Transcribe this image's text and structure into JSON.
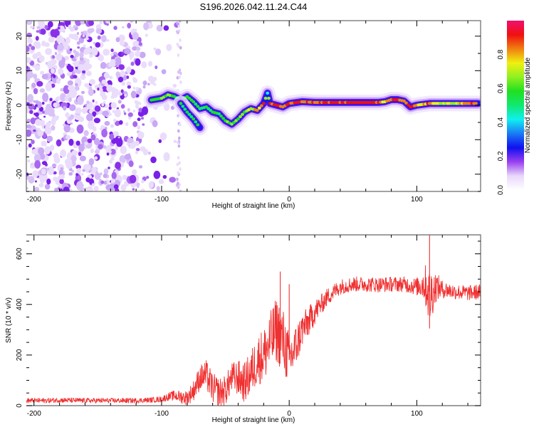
{
  "chart_data": [
    {
      "type": "heatmap",
      "title": "S196.2026.042.11.24.C44",
      "xlabel": "Height of straight line (km)",
      "ylabel": "Frequency (Hz)",
      "xlim": [
        -206,
        150
      ],
      "ylim": [
        -25,
        24.5
      ],
      "xticks": [
        -200,
        -100,
        0,
        100
      ],
      "xtick_labels": [
        "-200",
        "-100",
        "0",
        "100"
      ],
      "yticks": [
        -20,
        -10,
        0,
        10,
        20
      ],
      "ytick_labels": [
        "-20",
        "-10",
        "0",
        "10",
        "20"
      ],
      "grid": false,
      "colorbar": {
        "label": "Normalized spectral amplitude",
        "range": [
          0,
          1
        ],
        "ticks": [
          0.0,
          0.2,
          0.4,
          0.6,
          0.8
        ],
        "tick_labels": [
          "0.0",
          "0.2",
          "0.4",
          "0.6",
          "0.8"
        ],
        "colors": [
          "#ffffff",
          "#e8d8fb",
          "#9a3ff0",
          "#1010f0",
          "#1a7af5",
          "#10f0f0",
          "#10e870",
          "#20e020",
          "#90f020",
          "#f0f010",
          "#f08010",
          "#f01010",
          "#f01070"
        ]
      },
      "noise_region": {
        "x_range": [
          -206,
          -85
        ],
        "level": 0.12,
        "note": "scattered low-amplitude noise"
      },
      "ridge": {
        "x": [
          -108,
          -100,
          -95,
          -90,
          -85,
          -80,
          -75,
          -70,
          -65,
          -60,
          -55,
          -50,
          -45,
          -40,
          -35,
          -30,
          -25,
          -20,
          -17,
          -15,
          -10,
          -5,
          0,
          10,
          20,
          30,
          40,
          50,
          60,
          70,
          75,
          80,
          85,
          90,
          95,
          100,
          110,
          120,
          130,
          140,
          148
        ],
        "freq": [
          1.5,
          2.0,
          3.0,
          2.5,
          1.5,
          2.5,
          1.0,
          -1.0,
          -0.5,
          -2.0,
          -2.5,
          -4.5,
          -5.5,
          -4.0,
          -2.0,
          -1.0,
          -1.5,
          0.5,
          3.5,
          0.5,
          0.0,
          -0.5,
          0.5,
          1.0,
          0.8,
          0.8,
          0.8,
          0.8,
          0.8,
          0.8,
          1.0,
          1.6,
          1.6,
          1.2,
          -0.5,
          0.0,
          0.5,
          0.5,
          0.5,
          0.5,
          0.5
        ],
        "amplitude": [
          0.45,
          0.5,
          0.55,
          0.45,
          0.4,
          0.5,
          0.4,
          0.35,
          0.4,
          0.45,
          0.4,
          0.5,
          0.5,
          0.55,
          0.6,
          0.65,
          0.75,
          0.8,
          0.35,
          0.85,
          0.9,
          0.85,
          0.95,
          0.9,
          0.85,
          0.95,
          0.95,
          0.95,
          0.95,
          0.95,
          0.7,
          0.95,
          0.95,
          0.8,
          0.95,
          0.7,
          0.85,
          0.65,
          0.6,
          0.9,
          0.9
        ]
      },
      "branch": {
        "x": [
          -85,
          -80,
          -75,
          -70
        ],
        "freq": [
          0.5,
          -2.0,
          -4.0,
          -6.5
        ],
        "amplitude": [
          0.4,
          0.45,
          0.4,
          0.35
        ]
      }
    },
    {
      "type": "line",
      "xlabel": "Height of straight line (km)",
      "ylabel": "SNR (10 * v/v)",
      "xlim": [
        -206,
        150
      ],
      "ylim": [
        0,
        675
      ],
      "xticks": [
        -200,
        -100,
        0,
        100
      ],
      "xtick_labels": [
        "-200",
        "-100",
        "0",
        "100"
      ],
      "yticks": [
        0,
        200,
        400,
        600
      ],
      "ytick_labels": [
        "0",
        "200",
        "400",
        "600"
      ],
      "grid": false,
      "series": [
        {
          "name": "SNR",
          "color": "#f03030",
          "x": [
            -206,
            -190,
            -180,
            -160,
            -140,
            -120,
            -110,
            -100,
            -95,
            -90,
            -85,
            -80,
            -75,
            -70,
            -65,
            -60,
            -55,
            -50,
            -45,
            -40,
            -35,
            -30,
            -25,
            -20,
            -15,
            -10,
            -5,
            0,
            5,
            10,
            15,
            20,
            25,
            30,
            40,
            50,
            60,
            70,
            80,
            90,
            100,
            105,
            108,
            110,
            112,
            115,
            120,
            130,
            140,
            150
          ],
          "y": [
            20,
            20,
            22,
            20,
            20,
            20,
            22,
            25,
            35,
            40,
            35,
            30,
            60,
            110,
            120,
            70,
            50,
            60,
            110,
            110,
            90,
            130,
            180,
            200,
            250,
            300,
            260,
            180,
            230,
            300,
            330,
            370,
            400,
            430,
            470,
            480,
            480,
            478,
            480,
            480,
            470,
            480,
            470,
            420,
            450,
            470,
            460,
            450,
            445,
            450
          ],
          "noise_amplitude": [
            10,
            10,
            10,
            10,
            10,
            10,
            10,
            12,
            15,
            20,
            25,
            30,
            40,
            50,
            60,
            60,
            60,
            60,
            60,
            70,
            80,
            90,
            100,
            110,
            120,
            130,
            130,
            110,
            90,
            70,
            60,
            50,
            40,
            35,
            30,
            30,
            30,
            30,
            30,
            30,
            35,
            60,
            100,
            120,
            100,
            60,
            35,
            30,
            30,
            30
          ]
        }
      ],
      "annotations": [
        {
          "x": -7,
          "y": 530,
          "note": "spike"
        },
        {
          "x": 0,
          "y": 480,
          "note": "spike"
        },
        {
          "x": 110,
          "y": 675,
          "note": "max spike"
        },
        {
          "x": 110,
          "y": 305,
          "note": "min dip"
        }
      ]
    }
  ]
}
